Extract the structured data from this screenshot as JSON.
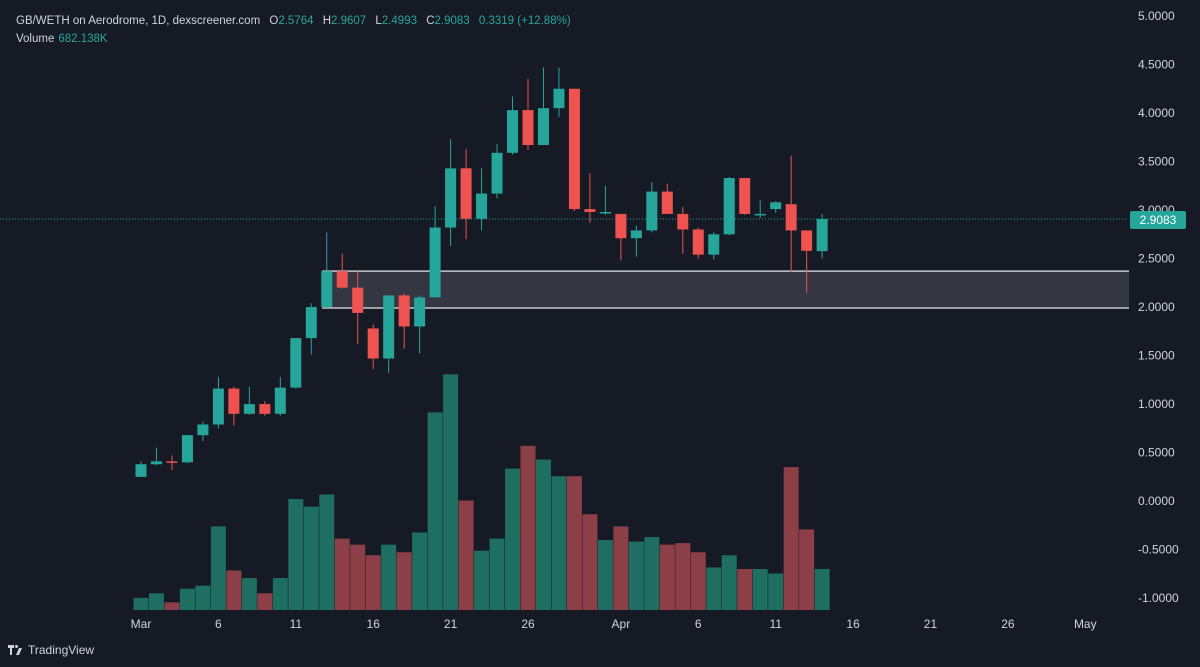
{
  "legend": {
    "symbol": "GB/WETH on Aerodrome, 1D, dexscreener.com",
    "o_label": "O",
    "o_value": "2.5764",
    "h_label": "H",
    "h_value": "2.9607",
    "l_label": "L",
    "l_value": "2.4993",
    "c_label": "C",
    "c_value": "2.9083",
    "change": "0.3319 (+12.88%)",
    "volume_label": "Volume",
    "volume_value": "682.138K"
  },
  "branding": {
    "name": "TradingView"
  },
  "colors": {
    "background": "#161a25",
    "up": "#26a69a",
    "down": "#ef5350",
    "up_volume": "#1f6e62",
    "down_volume": "#8d3f48",
    "zone_fill": "#3a3c47",
    "zone_border": "#c7c9d1",
    "text": "#d1d4dc"
  },
  "chart_data": {
    "type": "candlestick",
    "x_ticks": [
      "Mar",
      "6",
      "11",
      "16",
      "21",
      "26",
      "Apr",
      "6",
      "11",
      "16",
      "21",
      "26",
      "May"
    ],
    "y_ticks": [
      "5.0000",
      "4.5000",
      "4.0000",
      "3.5000",
      "3.0000",
      "2.5000",
      "2.0000",
      "1.5000",
      "1.0000",
      "0.5000",
      "0.0000",
      "-0.5000",
      "-1.0000"
    ],
    "ylim": [
      -1.05,
      5.0
    ],
    "last_price_label": "2.9083",
    "last_price": 2.9083,
    "zone": {
      "low": 1.99,
      "high": 2.37,
      "start_index": 12
    },
    "candles": [
      {
        "date": "Mar 1",
        "o": 0.25,
        "h": 0.41,
        "l": 0.25,
        "c": 0.38,
        "v": 0.08
      },
      {
        "date": "Mar 2",
        "o": 0.38,
        "h": 0.55,
        "l": 0.37,
        "c": 0.41,
        "v": 0.11
      },
      {
        "date": "Mar 3",
        "o": 0.41,
        "h": 0.47,
        "l": 0.32,
        "c": 0.4,
        "v": 0.05
      },
      {
        "date": "Mar 4",
        "o": 0.4,
        "h": 0.68,
        "l": 0.39,
        "c": 0.68,
        "v": 0.14
      },
      {
        "date": "Mar 5",
        "o": 0.68,
        "h": 0.82,
        "l": 0.62,
        "c": 0.79,
        "v": 0.16
      },
      {
        "date": "Mar 6",
        "o": 0.79,
        "h": 1.28,
        "l": 0.75,
        "c": 1.16,
        "v": 0.55
      },
      {
        "date": "Mar 7",
        "o": 1.16,
        "h": 1.18,
        "l": 0.78,
        "c": 0.9,
        "v": 0.26
      },
      {
        "date": "Mar 8",
        "o": 0.9,
        "h": 1.18,
        "l": 0.89,
        "c": 1.0,
        "v": 0.21
      },
      {
        "date": "Mar 9",
        "o": 1.0,
        "h": 1.03,
        "l": 0.88,
        "c": 0.9,
        "v": 0.11
      },
      {
        "date": "Mar 10",
        "o": 0.9,
        "h": 1.28,
        "l": 0.88,
        "c": 1.17,
        "v": 0.21
      },
      {
        "date": "Mar 11",
        "o": 1.17,
        "h": 1.68,
        "l": 1.16,
        "c": 1.68,
        "v": 0.73
      },
      {
        "date": "Mar 12",
        "o": 1.68,
        "h": 2.04,
        "l": 1.51,
        "c": 2.0,
        "v": 0.68
      },
      {
        "date": "Mar 13",
        "o": 2.0,
        "h": 2.77,
        "l": 1.99,
        "c": 2.37,
        "v": 0.76
      },
      {
        "date": "Mar 14",
        "o": 2.37,
        "h": 2.55,
        "l": 2.19,
        "c": 2.2,
        "v": 0.47
      },
      {
        "date": "Mar 15",
        "o": 2.2,
        "h": 2.37,
        "l": 1.62,
        "c": 1.94,
        "v": 0.43
      },
      {
        "date": "Mar 16",
        "o": 1.78,
        "h": 1.82,
        "l": 1.36,
        "c": 1.47,
        "v": 0.36
      },
      {
        "date": "Mar 17",
        "o": 1.47,
        "h": 2.12,
        "l": 1.32,
        "c": 2.12,
        "v": 0.43
      },
      {
        "date": "Mar 18",
        "o": 2.12,
        "h": 2.14,
        "l": 1.57,
        "c": 1.8,
        "v": 0.38
      },
      {
        "date": "Mar 19",
        "o": 1.8,
        "h": 2.12,
        "l": 1.52,
        "c": 2.1,
        "v": 0.51
      },
      {
        "date": "Mar 20",
        "o": 2.1,
        "h": 3.04,
        "l": 2.1,
        "c": 2.82,
        "v": 1.3
      },
      {
        "date": "Mar 21",
        "o": 2.82,
        "h": 3.73,
        "l": 2.63,
        "c": 3.43,
        "v": 1.55
      },
      {
        "date": "Mar 22",
        "o": 3.43,
        "h": 3.63,
        "l": 2.7,
        "c": 2.91,
        "v": 0.72
      },
      {
        "date": "Mar 23",
        "o": 2.91,
        "h": 3.43,
        "l": 2.79,
        "c": 3.17,
        "v": 0.39
      },
      {
        "date": "Mar 24",
        "o": 3.17,
        "h": 3.68,
        "l": 3.12,
        "c": 3.59,
        "v": 0.47
      },
      {
        "date": "Mar 25",
        "o": 3.59,
        "h": 4.17,
        "l": 3.57,
        "c": 4.03,
        "v": 0.93
      },
      {
        "date": "Mar 26",
        "o": 4.03,
        "h": 4.35,
        "l": 3.62,
        "c": 3.67,
        "v": 1.08
      },
      {
        "date": "Mar 27",
        "o": 3.67,
        "h": 4.47,
        "l": 3.67,
        "c": 4.05,
        "v": 0.99
      },
      {
        "date": "Mar 28",
        "o": 4.05,
        "h": 4.47,
        "l": 3.96,
        "c": 4.25,
        "v": 0.88
      },
      {
        "date": "Mar 29",
        "o": 4.25,
        "h": 4.25,
        "l": 2.99,
        "c": 3.01,
        "v": 0.88
      },
      {
        "date": "Mar 30",
        "o": 3.01,
        "h": 3.38,
        "l": 2.87,
        "c": 2.98,
        "v": 0.63
      },
      {
        "date": "Mar 31",
        "o": 2.98,
        "h": 3.25,
        "l": 2.95,
        "c": 2.98,
        "v": 0.46
      },
      {
        "date": "Apr 1",
        "o": 2.96,
        "h": 2.96,
        "l": 2.48,
        "c": 2.71,
        "v": 0.55
      },
      {
        "date": "Apr 2",
        "o": 2.71,
        "h": 2.84,
        "l": 2.52,
        "c": 2.79,
        "v": 0.45
      },
      {
        "date": "Apr 3",
        "o": 2.79,
        "h": 3.29,
        "l": 2.77,
        "c": 3.19,
        "v": 0.48
      },
      {
        "date": "Apr 4",
        "o": 3.19,
        "h": 3.27,
        "l": 2.96,
        "c": 2.96,
        "v": 0.43
      },
      {
        "date": "Apr 5",
        "o": 2.96,
        "h": 3.03,
        "l": 2.55,
        "c": 2.8,
        "v": 0.44
      },
      {
        "date": "Apr 6",
        "o": 2.8,
        "h": 2.82,
        "l": 2.5,
        "c": 2.54,
        "v": 0.38
      },
      {
        "date": "Apr 7",
        "o": 2.54,
        "h": 2.77,
        "l": 2.49,
        "c": 2.75,
        "v": 0.28
      },
      {
        "date": "Apr 8",
        "o": 2.75,
        "h": 3.34,
        "l": 2.74,
        "c": 3.33,
        "v": 0.36
      },
      {
        "date": "Apr 9",
        "o": 3.33,
        "h": 3.33,
        "l": 2.95,
        "c": 2.96,
        "v": 0.27
      },
      {
        "date": "Apr 10",
        "o": 2.96,
        "h": 3.1,
        "l": 2.92,
        "c": 2.96,
        "v": 0.27
      },
      {
        "date": "Apr 11",
        "o": 3.01,
        "h": 3.09,
        "l": 2.97,
        "c": 3.08,
        "v": 0.24
      },
      {
        "date": "Apr 12",
        "o": 3.06,
        "h": 3.56,
        "l": 2.36,
        "c": 2.79,
        "v": 0.94
      },
      {
        "date": "Apr 13",
        "o": 2.79,
        "h": 2.79,
        "l": 2.15,
        "c": 2.58,
        "v": 0.53
      },
      {
        "date": "Apr 14",
        "o": 2.5764,
        "h": 2.9607,
        "l": 2.4993,
        "c": 2.9083,
        "v": 0.27
      }
    ],
    "grid": false,
    "legend": "top-left"
  }
}
